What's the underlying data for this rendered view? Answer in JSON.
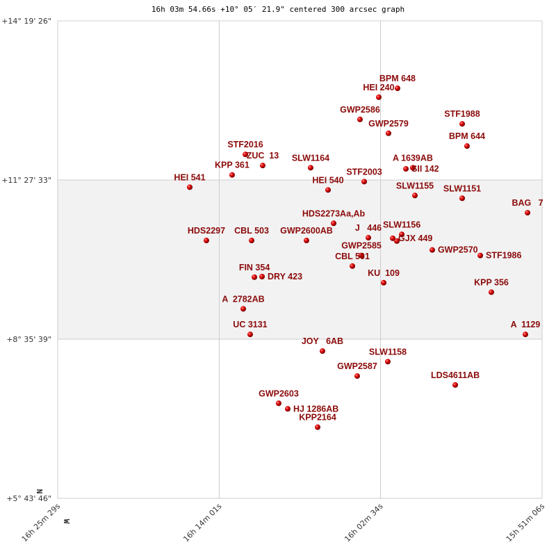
{
  "chart_data": {
    "type": "scatter",
    "title": "16h 03m 54.66s +10° 05′ 21.9\" centered 300 arcsec graph",
    "x_unit": "RA (hours)",
    "y_unit": "Dec (degrees)",
    "xlim": [
      16.42472,
      15.85167
    ],
    "ylim": [
      5.72944,
      14.32389
    ],
    "x_ticks": [
      {
        "value": 16.42472,
        "label": "16h 25m 29s"
      },
      {
        "value": 16.23361,
        "label": "16h 14m 01s"
      },
      {
        "value": 16.04278,
        "label": "16h 02m 34s"
      },
      {
        "value": 15.85167,
        "label": "15h 51m 06s"
      }
    ],
    "y_ticks": [
      {
        "value": 14.32389,
        "label": "+14° 19' 26\""
      },
      {
        "value": 11.45917,
        "label": "+11° 27' 33\""
      },
      {
        "value": 8.59417,
        "label": "+8° 35' 39\""
      },
      {
        "value": 5.72944,
        "label": "+5° 43' 46\""
      }
    ],
    "grid": true,
    "shaded_band": [
      8.59417,
      11.45917
    ],
    "direction_labels": {
      "north": "N",
      "west": "W"
    },
    "colors": {
      "label": "#8b0a0a",
      "point": "#e00000",
      "band": "#f2f2f2",
      "grid": "#cccccc"
    },
    "points": [
      {
        "label": "BPM 648",
        "ra": 16.0227,
        "dec": 13.11
      },
      {
        "label": "HEI 240",
        "ra": 16.0449,
        "dec": 12.95
      },
      {
        "label": "GWP2586",
        "ra": 16.0671,
        "dec": 12.55
      },
      {
        "label": "GWP2579",
        "ra": 16.0334,
        "dec": 12.3
      },
      {
        "label": "STF1988",
        "ra": 15.9462,
        "dec": 12.47
      },
      {
        "label": "BPM 644",
        "ra": 15.9405,
        "dec": 12.07
      },
      {
        "label": "STF2016",
        "ra": 16.2027,
        "dec": 11.92
      },
      {
        "label": "ZUC  13",
        "ra": 16.1822,
        "dec": 11.72
      },
      {
        "label": "KPP 361",
        "ra": 16.2184,
        "dec": 11.55
      },
      {
        "label": "SLW1164",
        "ra": 16.1255,
        "dec": 11.68
      },
      {
        "label": "A 1639AB",
        "ra": 16.0046,
        "dec": 11.68
      },
      {
        "label": "SII 142",
        "ra": 16.0128,
        "dec": 11.66
      },
      {
        "label": "HEI 541",
        "ra": 16.2685,
        "dec": 11.33
      },
      {
        "label": "STF2003",
        "ra": 16.0621,
        "dec": 11.43
      },
      {
        "label": "HEI 540",
        "ra": 16.1049,
        "dec": 11.28
      },
      {
        "label": "SLW1155",
        "ra": 16.0021,
        "dec": 11.18
      },
      {
        "label": "SLW1151",
        "ra": 15.9462,
        "dec": 11.13
      },
      {
        "label": "BAG   7",
        "ra": 15.8689,
        "dec": 10.87
      },
      {
        "label": "HDS2273Aa,Ab",
        "ra": 16.0983,
        "dec": 10.68
      },
      {
        "label": "HDS2297",
        "ra": 16.2488,
        "dec": 10.37
      },
      {
        "label": "CBL 503",
        "ra": 16.1953,
        "dec": 10.37
      },
      {
        "label": "GWP2600AB",
        "ra": 16.1304,
        "dec": 10.37
      },
      {
        "label": "J   446",
        "ra": 16.0572,
        "dec": 10.42
      },
      {
        "label": "SLW1156",
        "ra": 16.0177,
        "dec": 10.48
      },
      {
        "label": "GJX 449",
        "ra": 16.0284,
        "dec": 10.41
      },
      {
        "label": "",
        "ra": 16.0235,
        "dec": 10.36
      },
      {
        "label": "GWP2570",
        "ra": 15.9816,
        "dec": 10.2
      },
      {
        "label": "GWP2585",
        "ra": 16.0654,
        "dec": 10.1
      },
      {
        "label": "STF1986",
        "ra": 15.9248,
        "dec": 10.1
      },
      {
        "label": "CBL 501",
        "ra": 16.0761,
        "dec": 9.91
      },
      {
        "label": "FIN 354",
        "ra": 16.192,
        "dec": 9.71
      },
      {
        "label": "DRY 423",
        "ra": 16.183,
        "dec": 9.72
      },
      {
        "label": "KU  109",
        "ra": 16.0391,
        "dec": 9.61
      },
      {
        "label": "KPP 356",
        "ra": 15.9117,
        "dec": 9.44
      },
      {
        "label": "A  2782AB",
        "ra": 16.2052,
        "dec": 9.14
      },
      {
        "label": "UC 3131",
        "ra": 16.197,
        "dec": 8.68
      },
      {
        "label": "A  1129",
        "ra": 15.8714,
        "dec": 8.68
      },
      {
        "label": "JOY   6AB",
        "ra": 16.1115,
        "dec": 8.38
      },
      {
        "label": "SLW1158",
        "ra": 16.0342,
        "dec": 8.19
      },
      {
        "label": "GWP2587",
        "ra": 16.0704,
        "dec": 7.93
      },
      {
        "label": "LDS4611AB",
        "ra": 15.9544,
        "dec": 7.77
      },
      {
        "label": "GWP2603",
        "ra": 16.1633,
        "dec": 7.44
      },
      {
        "label": "HJ 1286AB",
        "ra": 16.1526,
        "dec": 7.34
      },
      {
        "label": "KPP2164",
        "ra": 16.1172,
        "dec": 7.01
      }
    ]
  }
}
